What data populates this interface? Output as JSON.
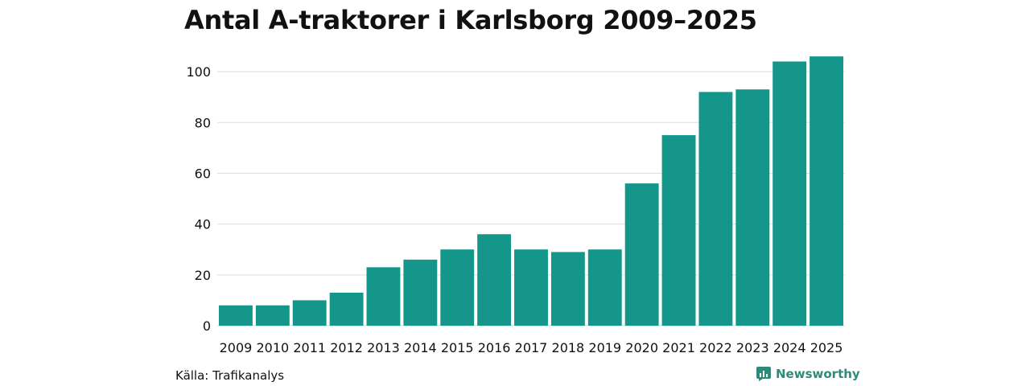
{
  "chart_data": {
    "type": "bar",
    "title": "Antal A-traktorer i Karlsborg 2009–2025",
    "categories": [
      "2009",
      "2010",
      "2011",
      "2012",
      "2013",
      "2014",
      "2015",
      "2016",
      "2017",
      "2018",
      "2019",
      "2020",
      "2021",
      "2022",
      "2023",
      "2024",
      "2025"
    ],
    "values": [
      8,
      8,
      10,
      13,
      23,
      26,
      30,
      36,
      30,
      29,
      30,
      56,
      75,
      92,
      93,
      104,
      106
    ],
    "xlabel": "",
    "ylabel": "",
    "ylim": [
      0,
      110
    ],
    "yticks": [
      0,
      20,
      40,
      60,
      80,
      100
    ],
    "grid": true,
    "bar_color": "#14968a",
    "grid_color": "#dddddd"
  },
  "footer": {
    "source": "Källa: Trafikanalys",
    "brand": "Newsworthy",
    "brand_icon": "newsworthy-logo-icon",
    "brand_color": "#2e8b7a"
  }
}
